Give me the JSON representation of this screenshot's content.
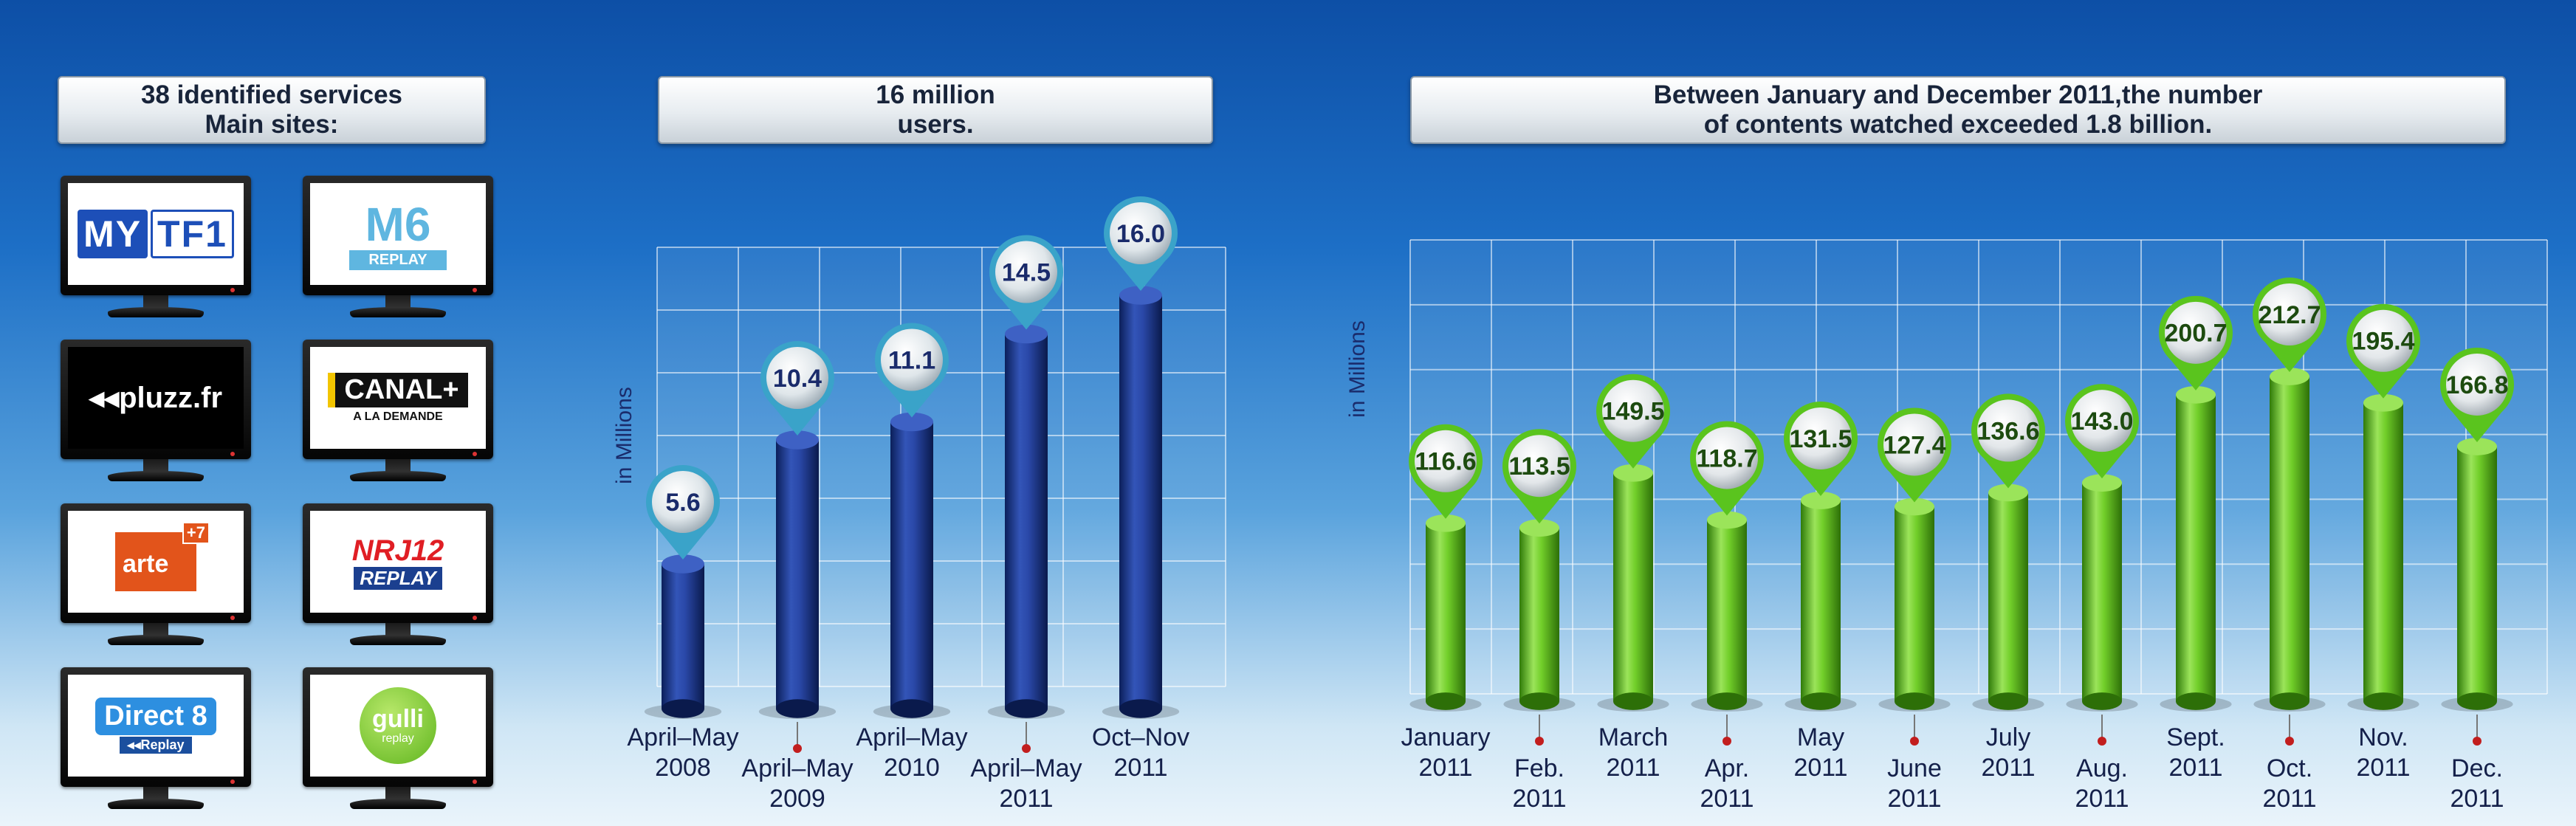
{
  "panels": {
    "services_title_line1": "38 identified services",
    "services_title_line2": "Main sites:",
    "users_title_line1": "16 million",
    "users_title_line2": "users.",
    "contents_title_line1": "Between January and December 2011,the number",
    "contents_title_line2": "of contents watched exceeded 1.8 billion."
  },
  "services": [
    {
      "name": "MYTF1",
      "part1": "MY",
      "part2": "TF1"
    },
    {
      "name": "M6 REPLAY",
      "part1": "M6",
      "part2": "REPLAY"
    },
    {
      "name": "pluzz.fr",
      "part1": "◂◂pluzz.fr",
      "part2": ""
    },
    {
      "name": "CANAL+ À LA DEMANDE",
      "part1": "CANAL+",
      "part2": "A LA DEMANDE"
    },
    {
      "name": "arte +7",
      "part1": "arte",
      "part2": "+7"
    },
    {
      "name": "NRJ12 REPLAY",
      "part1": "NRJ12",
      "part2": "REPLAY"
    },
    {
      "name": "Direct 8 Replay",
      "part1": "Direct 8",
      "part2": "◂◂Replay"
    },
    {
      "name": "gulli replay",
      "part1": "gulli",
      "part2": "replay"
    }
  ],
  "chart_data": [
    {
      "type": "bar",
      "ylabel": "in Millions",
      "categories": [
        "April–May 2008",
        "April–May 2009",
        "April–May 2010",
        "April–May 2011",
        "Oct–Nov 2011"
      ],
      "category_lines": [
        [
          "April–May",
          "2008"
        ],
        [
          "April–May",
          "2009"
        ],
        [
          "April–May",
          "2010"
        ],
        [
          "April–May",
          "2011"
        ],
        [
          "Oct–Nov",
          "2011"
        ]
      ],
      "values": [
        5.6,
        10.4,
        11.1,
        14.5,
        16.0
      ],
      "value_labels": [
        "5.6",
        "10.4",
        "11.1",
        "14.5",
        "16.0"
      ],
      "ylim": [
        0,
        16
      ],
      "color": "#1b3a8f",
      "marker_color": "#3aa3c9",
      "grid": true
    },
    {
      "type": "bar",
      "ylabel": "in Millions",
      "categories": [
        "January 2011",
        "Feb. 2011",
        "March 2011",
        "Apr. 2011",
        "May 2011",
        "June 2011",
        "July 2011",
        "Aug. 2011",
        "Sept. 2011",
        "Oct. 2011",
        "Nov. 2011",
        "Dec. 2011"
      ],
      "category_lines": [
        [
          "January",
          "2011"
        ],
        [
          "Feb.",
          "2011"
        ],
        [
          "March",
          "2011"
        ],
        [
          "Apr.",
          "2011"
        ],
        [
          "May",
          "2011"
        ],
        [
          "June",
          "2011"
        ],
        [
          "July",
          "2011"
        ],
        [
          "Aug.",
          "2011"
        ],
        [
          "Sept.",
          "2011"
        ],
        [
          "Oct.",
          "2011"
        ],
        [
          "Nov.",
          "2011"
        ],
        [
          "Dec.",
          "2011"
        ]
      ],
      "values": [
        116.6,
        113.5,
        149.5,
        118.7,
        131.5,
        127.4,
        136.6,
        143.0,
        200.7,
        212.7,
        195.4,
        166.8
      ],
      "value_labels": [
        "116.6",
        "113.5",
        "149.5",
        "118.7",
        "131.5",
        "127.4",
        "136.6",
        "143.0",
        "200.7",
        "212.7",
        "195.4",
        "166.8"
      ],
      "ylim": [
        0,
        212.7
      ],
      "color": "#5ac41e",
      "marker_color": "#5ac41e",
      "grid": true
    }
  ]
}
